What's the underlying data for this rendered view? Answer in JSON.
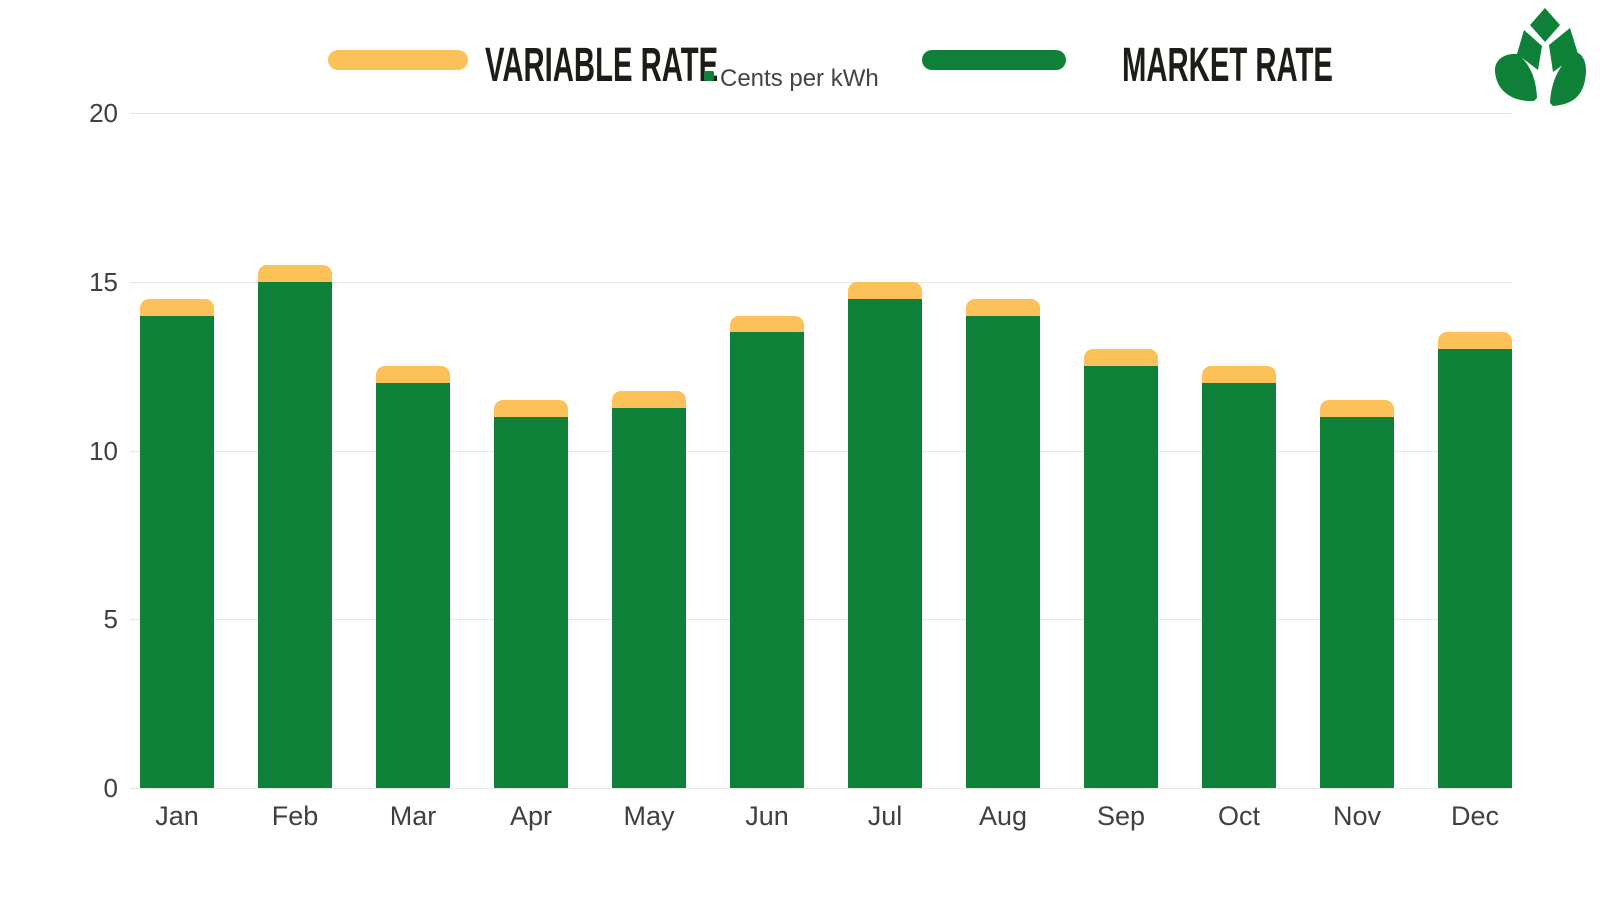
{
  "legend": {
    "variable_label": "VARIABLE RATE",
    "market_label": "MARKET RATE",
    "units_label": "Cents per kWh"
  },
  "colors": {
    "market_green": "#0e8038",
    "variable_yellow": "#fdc15a",
    "grid": "#e8e6e1",
    "axis_text": "#3d423b",
    "legend_text": "#1d1d17",
    "units_text": "#45443e",
    "logo_green": "#0e8038"
  },
  "chart_data": {
    "type": "bar",
    "stacked_overlay": true,
    "title": "",
    "xlabel": "",
    "ylabel": "Cents per kWh",
    "ylim": [
      0,
      20
    ],
    "yticks": [
      0,
      5,
      10,
      15,
      20
    ],
    "grid": true,
    "legend_position": "top",
    "categories": [
      "Jan",
      "Feb",
      "Mar",
      "Apr",
      "May",
      "Jun",
      "Jul",
      "Aug",
      "Sep",
      "Oct",
      "Nov",
      "Dec"
    ],
    "series": [
      {
        "name": "VARIABLE RATE",
        "role": "total-behind",
        "color": "#fdc15a",
        "values": [
          14.5,
          15.5,
          12.5,
          11.5,
          11.75,
          14,
          15,
          14.5,
          13,
          12.5,
          11.5,
          13.5
        ]
      },
      {
        "name": "MARKET RATE",
        "role": "front",
        "color": "#0e8038",
        "values": [
          14,
          15,
          12,
          11,
          11.25,
          13.5,
          14.5,
          14,
          12.5,
          12,
          11,
          13
        ]
      }
    ]
  },
  "logo": {
    "name": "leaf-logo"
  }
}
